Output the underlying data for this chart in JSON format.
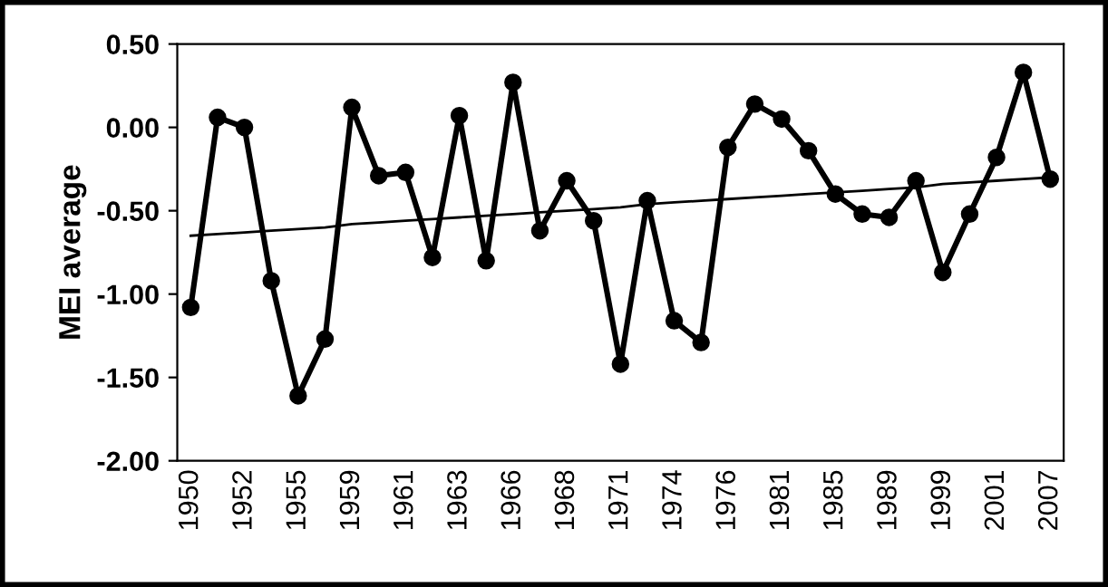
{
  "chart_data": {
    "type": "line",
    "ylabel": "MEI average",
    "categories": [
      "1950",
      null,
      "1952",
      null,
      "1955",
      null,
      "1959",
      null,
      "1961",
      null,
      "1963",
      null,
      "1966",
      null,
      "1968",
      null,
      "1971",
      null,
      "1974",
      null,
      "1976",
      null,
      "1981",
      null,
      "1985",
      null,
      "1989",
      null,
      "1999",
      null,
      "2001",
      null,
      "2007"
    ],
    "series": [
      {
        "color": "#000000",
        "marker": "circle",
        "values": [
          -1.08,
          0.06,
          0.0,
          -0.92,
          -1.61,
          -1.27,
          0.12,
          -0.29,
          -0.27,
          -0.78,
          0.07,
          -0.8,
          0.27,
          -0.62,
          -0.32,
          -0.56,
          -1.42,
          -0.44,
          -1.16,
          -1.29,
          -0.12,
          0.14,
          0.05,
          -0.14,
          -0.4,
          -0.52,
          -0.54,
          -0.32,
          -0.87,
          -0.52,
          -0.18,
          0.33,
          -0.31
        ]
      },
      {
        "color": "#000000",
        "marker": "none",
        "values": [
          -0.65,
          -0.64,
          -0.63,
          -0.62,
          -0.61,
          -0.6,
          -0.58,
          -0.57,
          -0.56,
          -0.55,
          -0.54,
          -0.53,
          -0.52,
          -0.51,
          -0.5,
          -0.49,
          -0.48,
          -0.46,
          -0.45,
          -0.44,
          -0.43,
          -0.42,
          -0.41,
          -0.4,
          -0.39,
          -0.38,
          -0.37,
          -0.36,
          -0.34,
          -0.33,
          -0.32,
          -0.31,
          -0.3
        ]
      }
    ],
    "ylim": [
      -2.0,
      0.5
    ],
    "yticks": [
      {
        "value": 0.5,
        "label": "0.50"
      },
      {
        "value": 0.0,
        "label": "0.00"
      },
      {
        "value": -0.5,
        "label": "-0.50"
      },
      {
        "value": -1.0,
        "label": "-1.00"
      },
      {
        "value": -1.5,
        "label": "-1.50"
      },
      {
        "value": -2.0,
        "label": "-2.00"
      }
    ],
    "grid": false,
    "legend": false
  }
}
